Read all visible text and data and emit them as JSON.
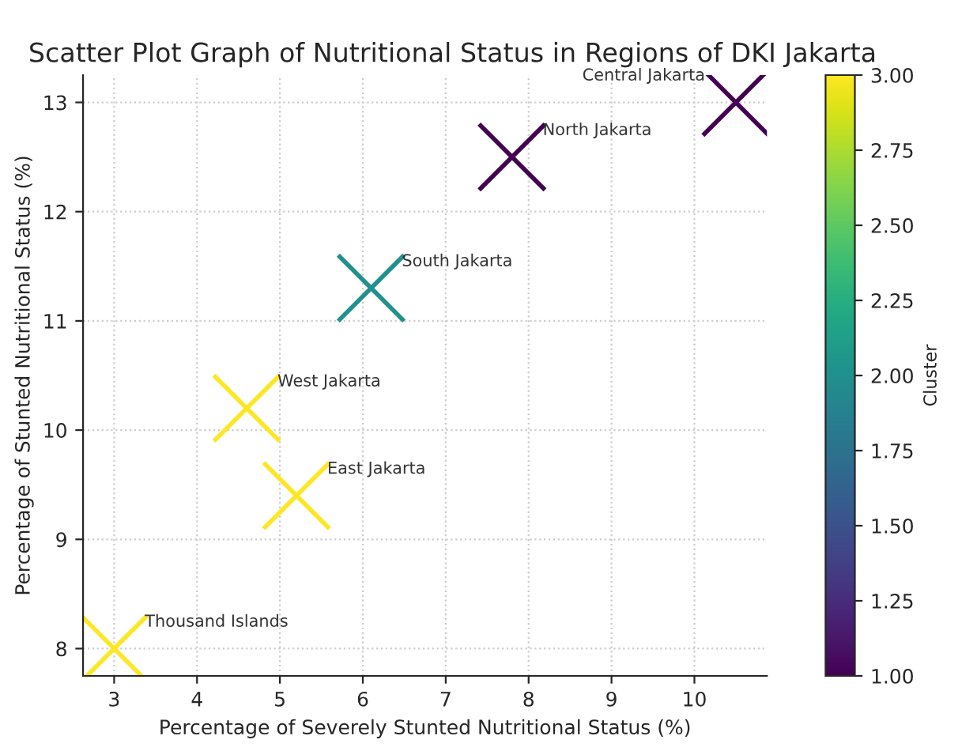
{
  "chart_data": {
    "type": "scatter",
    "title": "Scatter Plot Graph of Nutritional Status in Regions of DKI Jakarta",
    "xlabel": "Percentage of Severely Stunted Nutritional Status (%)",
    "ylabel": "Percentage of Stunted Nutritional Status (%)",
    "clabel": "Cluster",
    "x": [
      10.5,
      7.8,
      6.1,
      4.6,
      5.2,
      3.0
    ],
    "values": [
      13.0,
      12.5,
      11.3,
      10.2,
      9.4,
      8.0
    ],
    "cvalues": [
      1,
      1,
      2,
      3,
      3,
      3
    ],
    "clim": [
      1,
      3
    ],
    "cticks": [
      {
        "value": 1,
        "label": "1.00"
      },
      {
        "value": 1.25,
        "label": "1.25"
      },
      {
        "value": 1.5,
        "label": "1.50"
      },
      {
        "value": 1.75,
        "label": "1.75"
      },
      {
        "value": 2,
        "label": "2.00"
      },
      {
        "value": 2.25,
        "label": "2.25"
      },
      {
        "value": 2.5,
        "label": "2.50"
      },
      {
        "value": 2.75,
        "label": "2.75"
      },
      {
        "value": 3,
        "label": "3.00"
      }
    ],
    "annotations": [
      {
        "text": "Central Jakarta",
        "x": 10.5,
        "y": 13.0
      },
      {
        "text": "North Jakarta",
        "x": 7.8,
        "y": 12.5
      },
      {
        "text": "South Jakarta",
        "x": 6.1,
        "y": 11.3
      },
      {
        "text": "West Jakarta",
        "x": 4.6,
        "y": 10.2
      },
      {
        "text": "East Jakarta",
        "x": 5.2,
        "y": 9.4
      },
      {
        "text": "Thousand Islands",
        "x": 3.0,
        "y": 8.0
      }
    ],
    "xlim": [
      2.625,
      10.875
    ],
    "ylim": [
      7.75,
      13.25
    ],
    "xticks": [
      3,
      4,
      5,
      6,
      7,
      8,
      9,
      10
    ],
    "yticks": [
      8,
      9,
      10,
      11,
      12,
      13
    ],
    "grid": true,
    "marker": "cross"
  }
}
